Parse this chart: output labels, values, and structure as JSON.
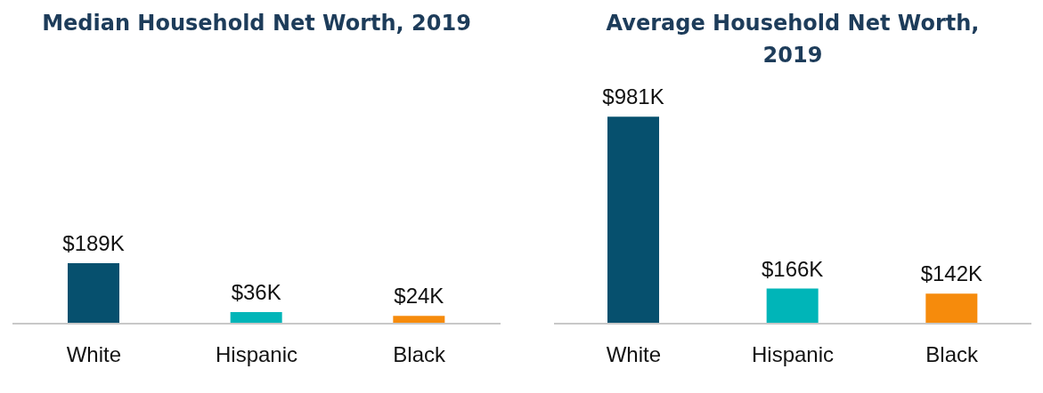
{
  "chart_data": [
    {
      "type": "bar",
      "title": "Median Household Net Worth, 2019",
      "categories": [
        "White",
        "Hispanic",
        "Black"
      ],
      "values": [
        189,
        36,
        24
      ],
      "value_labels": [
        "$189K",
        "$36K",
        "$24K"
      ],
      "colors": [
        "#06506e",
        "#00b5b8",
        "#f68b0c"
      ],
      "grid": false,
      "legend": false
    },
    {
      "type": "bar",
      "title": "Average Household Net Worth, 2019",
      "categories": [
        "White",
        "Hispanic",
        "Black"
      ],
      "values": [
        981,
        166,
        142
      ],
      "value_labels": [
        "$981K",
        "$166K",
        "$142K"
      ],
      "colors": [
        "#06506e",
        "#00b5b8",
        "#f68b0c"
      ],
      "grid": false,
      "legend": false
    }
  ]
}
